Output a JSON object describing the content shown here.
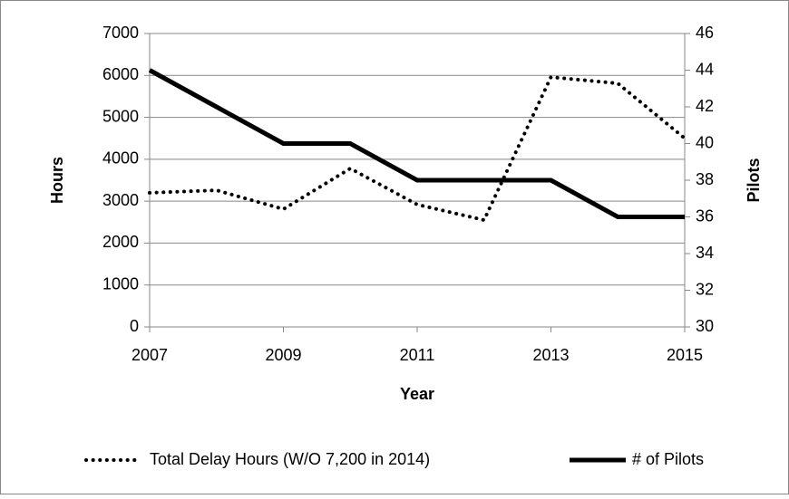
{
  "chart_data": {
    "type": "line",
    "x": [
      2007,
      2008,
      2009,
      2010,
      2011,
      2012,
      2013,
      2014,
      2015
    ],
    "series": [
      {
        "name": "Total Delay Hours (W/O 7,200 in 2014)",
        "color": "#000000",
        "line_style": "dotted",
        "values": [
          3200,
          3260,
          2810,
          3780,
          2920,
          2550,
          5960,
          5810,
          4500
        ]
      },
      {
        "name": "# of Pilots",
        "color": "#000000",
        "line_style": "solid",
        "axis": "y2",
        "values": [
          44,
          42,
          40,
          40,
          38,
          38,
          38,
          36,
          36
        ]
      }
    ],
    "x_label": "Year",
    "y_label": "Hours",
    "y2_label": "Pilots",
    "xlim": [
      2007,
      2015
    ],
    "xticks": [
      2007,
      2009,
      2011,
      2013,
      2015
    ],
    "ylim": [
      0,
      7000
    ],
    "yticks": [
      0,
      1000,
      2000,
      3000,
      4000,
      5000,
      6000,
      7000
    ],
    "y2lim": [
      30,
      46
    ],
    "y2ticks": [
      30,
      32,
      34,
      36,
      38,
      40,
      42,
      44,
      46
    ],
    "grid": true,
    "legend": "bottom"
  }
}
